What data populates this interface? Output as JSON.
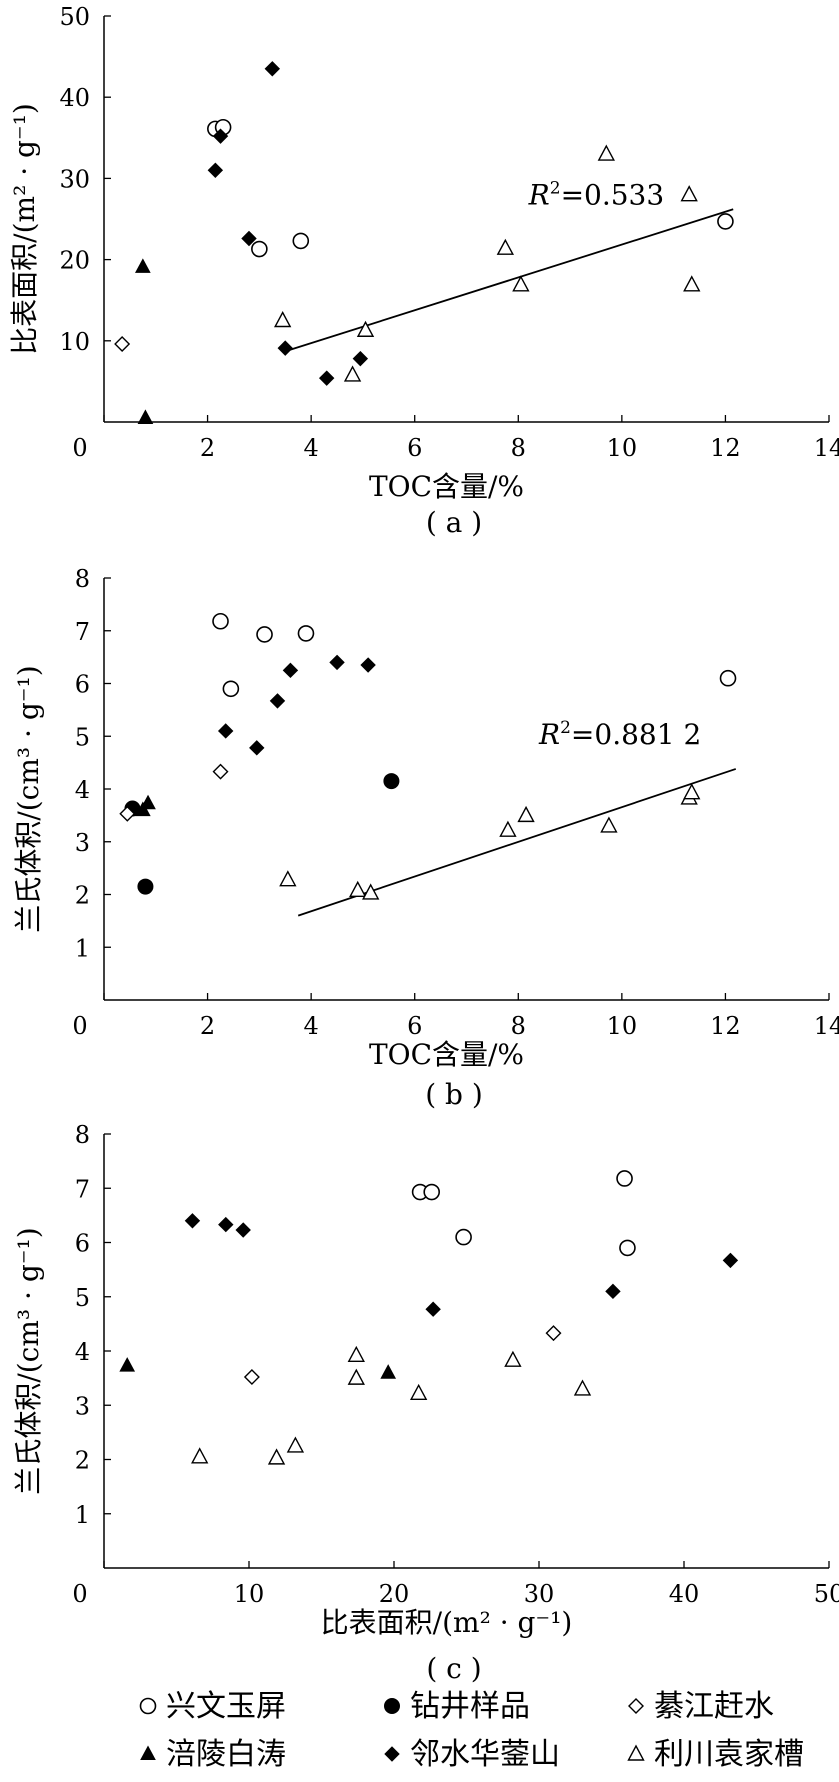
{
  "symbols": {
    "兴文玉屏": "circle-open",
    "钻井样品": "circle-filled",
    "綦江赶水": "diamond-open",
    "涪陵白涛": "triangle-filled",
    "邻水华蓥山": "diamond-filled",
    "利川袁家槽": "triangle-open"
  },
  "chart_data": [
    {
      "type": "scatter",
      "caption": "( a )",
      "xlabel": "TOC含量/%",
      "ylabel": "比表面积/(m² · g⁻¹)",
      "xlim": [
        0,
        14
      ],
      "ylim": [
        0,
        50
      ],
      "xticks": [
        0,
        2,
        4,
        6,
        8,
        10,
        12,
        14
      ],
      "yticks": [
        10,
        20,
        30,
        40,
        50
      ],
      "origin_label": "0",
      "series": [
        {
          "name": "兴文玉屏",
          "points": [
            [
              2.15,
              36.1
            ],
            [
              2.3,
              36.3
            ],
            [
              3.0,
              21.3
            ],
            [
              3.8,
              22.3
            ],
            [
              12.0,
              24.7
            ]
          ]
        },
        {
          "name": "綦江赶水",
          "points": [
            [
              0.35,
              9.6
            ]
          ]
        },
        {
          "name": "涪陵白涛",
          "points": [
            [
              0.75,
              19.1
            ],
            [
              0.8,
              0.5
            ]
          ]
        },
        {
          "name": "邻水华蓥山",
          "points": [
            [
              2.25,
              35.2
            ],
            [
              3.25,
              43.5
            ],
            [
              2.8,
              22.6
            ],
            [
              3.5,
              9.1
            ],
            [
              4.3,
              5.4
            ],
            [
              4.95,
              7.8
            ],
            [
              2.15,
              31.0
            ]
          ]
        },
        {
          "name": "利川袁家槽",
          "points": [
            [
              3.45,
              12.5
            ],
            [
              4.8,
              5.8
            ],
            [
              5.05,
              11.3
            ],
            [
              7.75,
              21.4
            ],
            [
              8.05,
              16.9
            ],
            [
              9.7,
              33.0
            ],
            [
              11.3,
              28.0
            ],
            [
              11.35,
              16.9
            ]
          ]
        }
      ],
      "fit": {
        "x": [
          3.45,
          12.15
        ],
        "y": [
          8.6,
          26.2
        ],
        "label_italic": "R",
        "label_sup": "2",
        "label_rest": "=0.533"
      }
    },
    {
      "type": "scatter",
      "caption": "( b )",
      "xlabel": "TOC含量/%",
      "ylabel": "兰氏体积/(cm³ · g⁻¹)",
      "xlim": [
        0,
        14
      ],
      "ylim": [
        0,
        8
      ],
      "xticks": [
        0,
        2,
        4,
        6,
        8,
        10,
        12,
        14
      ],
      "yticks": [
        1,
        2,
        3,
        4,
        5,
        6,
        7,
        8
      ],
      "origin_label": "0",
      "series": [
        {
          "name": "兴文玉屏",
          "points": [
            [
              2.25,
              7.18
            ],
            [
              3.1,
              6.93
            ],
            [
              3.9,
              6.95
            ],
            [
              2.45,
              5.9
            ],
            [
              12.05,
              6.1
            ]
          ]
        },
        {
          "name": "钻井样品",
          "points": [
            [
              0.55,
              3.63
            ],
            [
              0.8,
              2.15
            ],
            [
              5.55,
              4.15
            ]
          ]
        },
        {
          "name": "綦江赶水",
          "points": [
            [
              0.45,
              3.53
            ],
            [
              2.25,
              4.33
            ]
          ]
        },
        {
          "name": "涪陵白涛",
          "points": [
            [
              0.75,
              3.6
            ],
            [
              0.85,
              3.73
            ]
          ]
        },
        {
          "name": "邻水华蓥山",
          "points": [
            [
              2.35,
              5.1
            ],
            [
              3.6,
              6.25
            ],
            [
              4.5,
              6.4
            ],
            [
              5.1,
              6.35
            ],
            [
              3.35,
              5.67
            ],
            [
              2.95,
              4.78
            ]
          ]
        },
        {
          "name": "利川袁家槽",
          "points": [
            [
              3.55,
              2.28
            ],
            [
              4.9,
              2.08
            ],
            [
              5.15,
              2.03
            ],
            [
              7.8,
              3.22
            ],
            [
              8.15,
              3.5
            ],
            [
              9.75,
              3.3
            ],
            [
              11.3,
              3.83
            ],
            [
              11.35,
              3.93
            ]
          ]
        }
      ],
      "fit": {
        "x": [
          3.75,
          12.2
        ],
        "y": [
          1.6,
          4.38
        ],
        "label_italic": "R",
        "label_sup": "2",
        "label_rest": "=0.881 2"
      }
    },
    {
      "type": "scatter",
      "caption": "( c )",
      "xlabel": "比表面积/(m² · g⁻¹)",
      "ylabel": "兰氏体积/(cm³ · g⁻¹)",
      "xlim": [
        0,
        50
      ],
      "ylim": [
        0,
        8
      ],
      "xticks": [
        0,
        10,
        20,
        30,
        40,
        50
      ],
      "yticks": [
        1,
        2,
        3,
        4,
        5,
        6,
        7,
        8
      ],
      "origin_label": "0",
      "series": [
        {
          "name": "兴文玉屏",
          "points": [
            [
              21.8,
              6.93
            ],
            [
              22.6,
              6.93
            ],
            [
              24.8,
              6.1
            ],
            [
              35.9,
              7.18
            ],
            [
              36.1,
              5.9
            ]
          ]
        },
        {
          "name": "綦江赶水",
          "points": [
            [
              10.2,
              3.52
            ],
            [
              31.0,
              4.33
            ]
          ]
        },
        {
          "name": "涪陵白涛",
          "points": [
            [
              1.6,
              3.73
            ],
            [
              19.6,
              3.6
            ]
          ]
        },
        {
          "name": "邻水华蓥山",
          "points": [
            [
              6.1,
              6.4
            ],
            [
              8.4,
              6.33
            ],
            [
              9.6,
              6.23
            ],
            [
              22.7,
              4.77
            ],
            [
              35.1,
              5.1
            ],
            [
              43.2,
              5.67
            ]
          ]
        },
        {
          "name": "利川袁家槽",
          "points": [
            [
              6.6,
              2.05
            ],
            [
              11.9,
              2.03
            ],
            [
              13.2,
              2.25
            ],
            [
              17.4,
              3.92
            ],
            [
              17.4,
              3.5
            ],
            [
              21.7,
              3.22
            ],
            [
              28.2,
              3.83
            ],
            [
              33.0,
              3.3
            ]
          ]
        }
      ],
      "fit": null
    }
  ],
  "legend": [
    {
      "name": "兴文玉屏",
      "symbol": "circle-open"
    },
    {
      "name": "钻井样品",
      "symbol": "circle-filled"
    },
    {
      "name": "綦江赶水",
      "symbol": "diamond-open"
    },
    {
      "name": "涪陵白涛",
      "symbol": "triangle-filled"
    },
    {
      "name": "邻水华蓥山",
      "symbol": "diamond-filled"
    },
    {
      "name": "利川袁家槽",
      "symbol": "triangle-open"
    }
  ]
}
